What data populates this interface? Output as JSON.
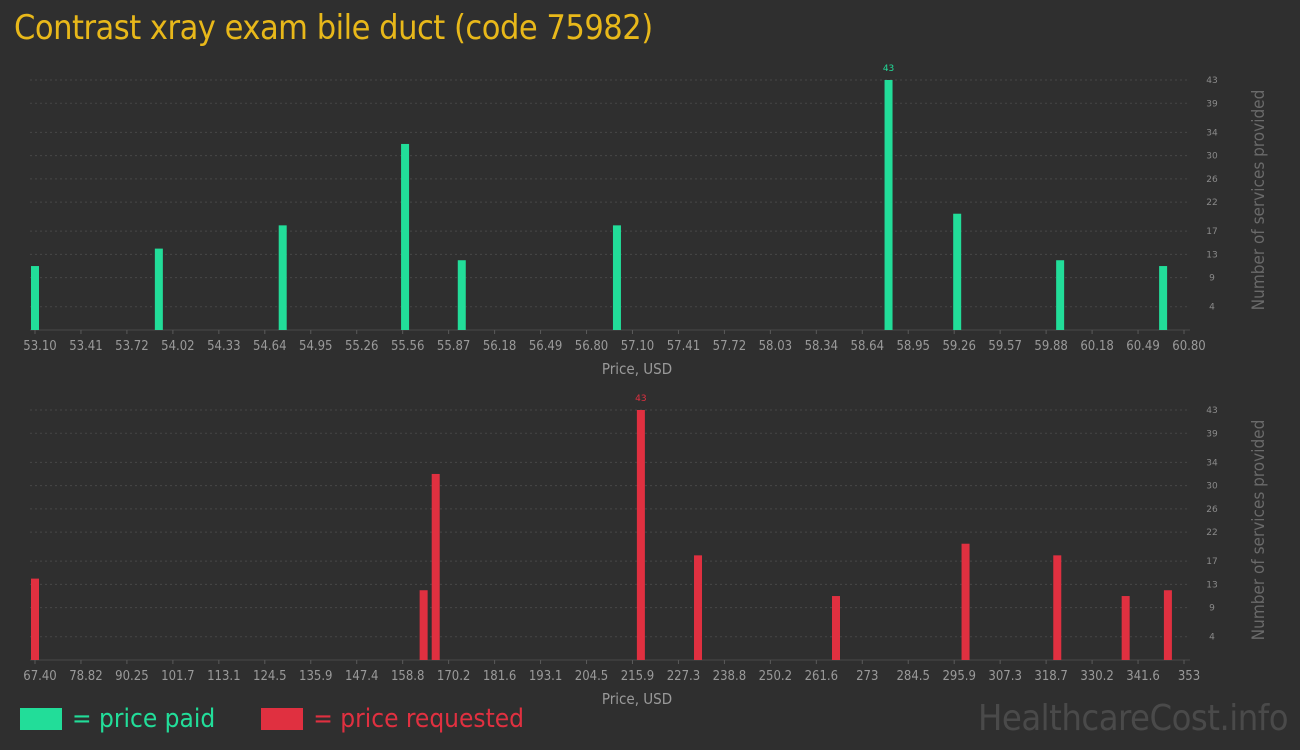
{
  "title": "Contrast xray exam bile duct (code 75982)",
  "legend": {
    "paid_label": "= price paid",
    "requested_label": "= price requested",
    "paid_color": "#22dd99",
    "requested_color": "#e03040"
  },
  "watermark": "HealthcareCost.info",
  "chart_data": [
    {
      "type": "bar",
      "name": "price paid",
      "color": "#22dd99",
      "xlabel": "Price, USD",
      "ylabel": "Number of services provided",
      "xlim": [
        53.1,
        60.8
      ],
      "ylim": [
        0,
        43
      ],
      "x_ticks": [
        "53.10",
        "53.41",
        "53.72",
        "54.02",
        "54.33",
        "54.64",
        "54.95",
        "55.26",
        "55.56",
        "55.87",
        "56.18",
        "56.49",
        "56.80",
        "57.10",
        "57.41",
        "57.72",
        "58.03",
        "58.34",
        "58.64",
        "58.95",
        "59.26",
        "59.57",
        "59.88",
        "60.18",
        "60.49",
        "60.80"
      ],
      "y_ticks": [
        "4",
        "9",
        "13",
        "17",
        "22",
        "26",
        "30",
        "34",
        "39",
        "43"
      ],
      "points": [
        {
          "x": 53.1,
          "y": 11
        },
        {
          "x": 53.93,
          "y": 14
        },
        {
          "x": 54.76,
          "y": 18
        },
        {
          "x": 55.58,
          "y": 32
        },
        {
          "x": 55.96,
          "y": 12
        },
        {
          "x": 57.0,
          "y": 18
        },
        {
          "x": 58.82,
          "y": 43
        },
        {
          "x": 59.28,
          "y": 20
        },
        {
          "x": 59.97,
          "y": 12
        },
        {
          "x": 60.66,
          "y": 11
        }
      ],
      "peak_label": "43"
    },
    {
      "type": "bar",
      "name": "price requested",
      "color": "#e03040",
      "xlabel": "Price, USD",
      "ylabel": "Number of services provided",
      "xlim": [
        67.4,
        353
      ],
      "ylim": [
        0,
        43
      ],
      "x_ticks": [
        "67.40",
        "78.82",
        "90.25",
        "101.7",
        "113.1",
        "124.5",
        "135.9",
        "147.4",
        "158.8",
        "170.2",
        "181.6",
        "193.1",
        "204.5",
        "215.9",
        "227.3",
        "238.8",
        "250.2",
        "261.6",
        "273",
        "284.5",
        "295.9",
        "307.3",
        "318.7",
        "330.2",
        "341.6",
        "353"
      ],
      "y_ticks": [
        "4",
        "9",
        "13",
        "17",
        "22",
        "26",
        "30",
        "34",
        "39",
        "43"
      ],
      "points": [
        {
          "x": 67.4,
          "y": 14
        },
        {
          "x": 164.0,
          "y": 12
        },
        {
          "x": 167.0,
          "y": 32
        },
        {
          "x": 218.0,
          "y": 43
        },
        {
          "x": 232.2,
          "y": 18
        },
        {
          "x": 266.5,
          "y": 11
        },
        {
          "x": 298.7,
          "y": 20
        },
        {
          "x": 321.5,
          "y": 18
        },
        {
          "x": 338.5,
          "y": 11
        },
        {
          "x": 349.0,
          "y": 12
        }
      ],
      "peak_label": "43"
    }
  ]
}
